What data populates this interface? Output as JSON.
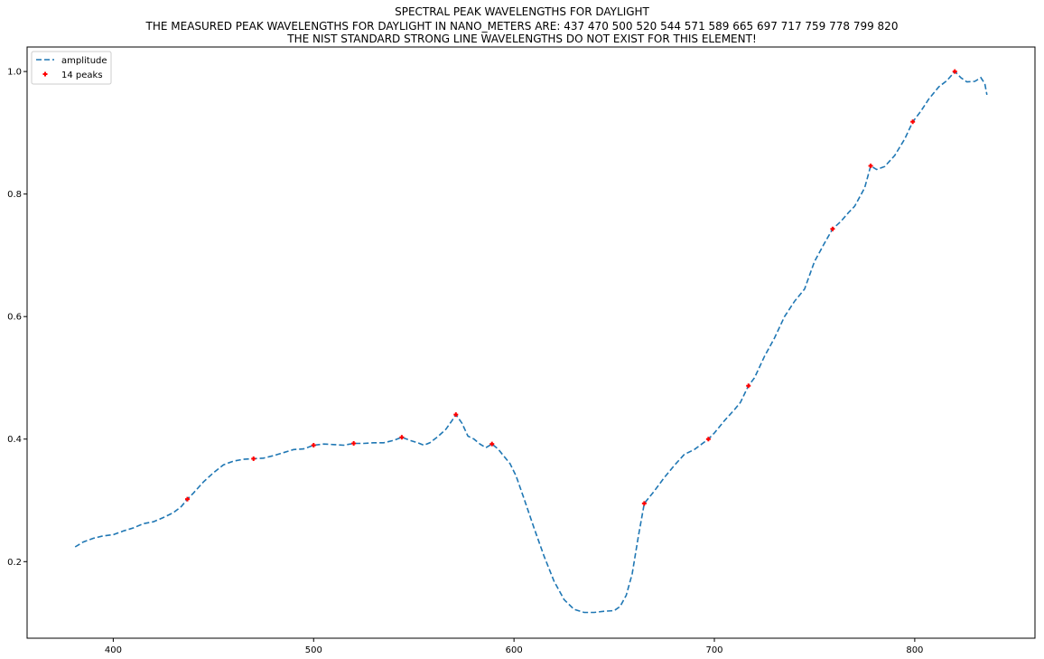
{
  "chart_data": {
    "type": "line",
    "title": "SPECTRAL PEAK WAVELENGTHS FOR DAYLIGHT",
    "subtitle_lines": [
      "THE MEASURED PEAK WAVELENGTHS FOR DAYLIGHT IN NANO_METERS ARE: 437 470 500 520 544 571 589 665 697 717 759 778 799 820",
      "THE NIST STANDARD STRONG LINE WAVELENGTHS DO NOT EXIST FOR THIS ELEMENT!"
    ],
    "xlabel": "",
    "ylabel": "",
    "xlim": [
      357,
      860
    ],
    "ylim": [
      0.075,
      1.04
    ],
    "xticks": [
      400,
      500,
      600,
      700,
      800
    ],
    "yticks": [
      0.2,
      0.4,
      0.6,
      0.8,
      1.0
    ],
    "xtick_labels": [
      "400",
      "500",
      "600",
      "700",
      "800"
    ],
    "ytick_labels": [
      "0.2",
      "0.4",
      "0.6",
      "0.8",
      "1.0"
    ],
    "grid": false,
    "legend_position": "upper-left",
    "legend": [
      {
        "label": "amplitude",
        "style": "dashed-line",
        "color": "#1f77b4"
      },
      {
        "label": "14 peaks",
        "style": "plus-marker",
        "color": "#ff0000"
      }
    ],
    "series": [
      {
        "name": "amplitude",
        "color": "#1f77b4",
        "linestyle": "dashed",
        "x": [
          381,
          385,
          390,
          395,
          400,
          405,
          410,
          415,
          420,
          425,
          430,
          434,
          437,
          440,
          445,
          450,
          455,
          460,
          465,
          470,
          475,
          480,
          485,
          490,
          495,
          500,
          505,
          510,
          515,
          520,
          525,
          530,
          535,
          540,
          544,
          548,
          552,
          555,
          558,
          562,
          566,
          569,
          571,
          574,
          577,
          580,
          583,
          586,
          589,
          592,
          595,
          598,
          601,
          605,
          610,
          615,
          620,
          625,
          630,
          635,
          640,
          645,
          650,
          653,
          656,
          659,
          662,
          665,
          670,
          675,
          680,
          685,
          690,
          697,
          700,
          705,
          710,
          713,
          717,
          720,
          725,
          730,
          735,
          740,
          745,
          750,
          755,
          759,
          763,
          767,
          770,
          775,
          778,
          781,
          785,
          790,
          795,
          799,
          803,
          807,
          812,
          816,
          820,
          823,
          826,
          830,
          833,
          835,
          836
        ],
        "y": [
          0.224,
          0.232,
          0.238,
          0.242,
          0.244,
          0.25,
          0.255,
          0.262,
          0.265,
          0.272,
          0.28,
          0.29,
          0.302,
          0.312,
          0.33,
          0.345,
          0.358,
          0.364,
          0.367,
          0.368,
          0.369,
          0.373,
          0.378,
          0.383,
          0.384,
          0.39,
          0.392,
          0.391,
          0.39,
          0.393,
          0.393,
          0.394,
          0.394,
          0.398,
          0.403,
          0.398,
          0.394,
          0.39,
          0.394,
          0.404,
          0.416,
          0.43,
          0.44,
          0.426,
          0.405,
          0.4,
          0.392,
          0.386,
          0.392,
          0.384,
          0.372,
          0.36,
          0.34,
          0.303,
          0.255,
          0.209,
          0.168,
          0.138,
          0.122,
          0.117,
          0.117,
          0.119,
          0.12,
          0.127,
          0.145,
          0.18,
          0.24,
          0.295,
          0.315,
          0.337,
          0.357,
          0.375,
          0.383,
          0.4,
          0.41,
          0.43,
          0.448,
          0.46,
          0.487,
          0.5,
          0.535,
          0.565,
          0.6,
          0.625,
          0.645,
          0.69,
          0.72,
          0.743,
          0.755,
          0.77,
          0.78,
          0.81,
          0.846,
          0.84,
          0.845,
          0.863,
          0.89,
          0.918,
          0.935,
          0.955,
          0.975,
          0.985,
          1.0,
          0.99,
          0.983,
          0.984,
          0.99,
          0.98,
          0.962
        ]
      },
      {
        "name": "14 peaks",
        "color": "#ff0000",
        "marker": "+",
        "x": [
          437,
          470,
          500,
          520,
          544,
          571,
          589,
          665,
          697,
          717,
          759,
          778,
          799,
          820
        ],
        "y": [
          0.302,
          0.368,
          0.39,
          0.393,
          0.403,
          0.44,
          0.392,
          0.295,
          0.4,
          0.487,
          0.743,
          0.846,
          0.918,
          1.0
        ]
      }
    ]
  }
}
